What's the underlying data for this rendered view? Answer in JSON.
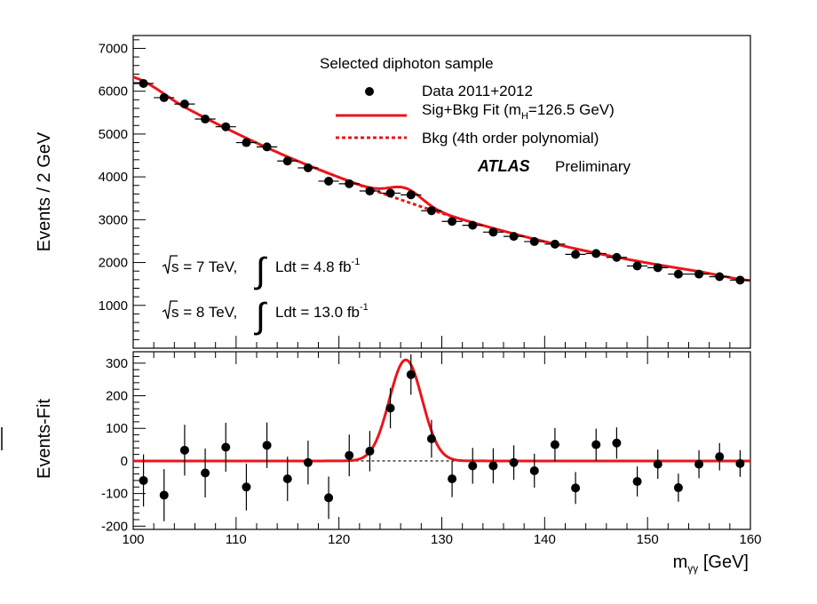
{
  "chart_data": [
    {
      "type": "scatter",
      "panel": "main",
      "ylabel": "Events / 2 GeV",
      "xlim": [
        100,
        160
      ],
      "ylim": [
        0,
        7300
      ],
      "yticks": [
        1000,
        2000,
        3000,
        4000,
        5000,
        6000,
        7000
      ],
      "legend": {
        "header": "Selected diphoton sample",
        "data": "Data 2011+2012",
        "sig_prefix": "Sig+Bkg Fit (m",
        "sig_sub": "H",
        "sig_suffix": "=126.5 GeV)",
        "bkg": "Bkg (4th order polynomial)",
        "placement": "top-right"
      },
      "experiment": "ATLAS",
      "status": "Preliminary",
      "lumi": [
        {
          "sqrt": "s",
          "energy": " = 7 TeV,",
          "int": "Ldt = 4.8 fb",
          "exp": "-1"
        },
        {
          "sqrt": "s",
          "energy": " = 8 TeV,",
          "int": "Ldt = 13.0 fb",
          "exp": "-1"
        }
      ],
      "x": [
        101,
        103,
        105,
        107,
        109,
        111,
        113,
        115,
        117,
        119,
        121,
        123,
        125,
        127,
        129,
        131,
        133,
        135,
        137,
        139,
        141,
        143,
        145,
        147,
        149,
        151,
        153,
        155,
        157,
        159
      ],
      "values": [
        6180,
        5850,
        5700,
        5350,
        5170,
        4800,
        4700,
        4370,
        4210,
        3900,
        3840,
        3670,
        3620,
        3580,
        3210,
        2960,
        2870,
        2710,
        2610,
        2490,
        2430,
        2190,
        2210,
        2120,
        1920,
        1880,
        1730,
        1730,
        1670,
        1590
      ],
      "background_fit": {
        "x": [
          100,
          105,
          110,
          115,
          120,
          125,
          130,
          135,
          140,
          145,
          150,
          155,
          160
        ],
        "y": [
          6330,
          5630,
          5020,
          4470,
          3990,
          3550,
          3150,
          2800,
          2490,
          2220,
          1990,
          1790,
          1580
        ]
      },
      "signal": {
        "mass": 126.5,
        "peak": 310,
        "sigma": 1.6
      },
      "colors": {
        "fit": "#e8161b",
        "data": "#000000"
      }
    },
    {
      "type": "scatter",
      "panel": "residual",
      "ylabel": "Events-Fit",
      "xlabel_main": "m",
      "xlabel_sub": "γγ",
      "xlabel_unit": " [GeV]",
      "xlim": [
        100,
        160
      ],
      "ylim": [
        -210,
        335
      ],
      "yticks": [
        -200,
        -100,
        0,
        100,
        200,
        300
      ],
      "xticks": [
        100,
        110,
        120,
        130,
        140,
        150,
        160
      ],
      "x": [
        101,
        103,
        105,
        107,
        109,
        111,
        113,
        115,
        117,
        119,
        121,
        123,
        125,
        127,
        129,
        131,
        133,
        135,
        137,
        139,
        141,
        143,
        145,
        147,
        149,
        151,
        153,
        155,
        157,
        159
      ],
      "values": [
        -60,
        -105,
        33,
        -37,
        42,
        -80,
        48,
        -55,
        -5,
        -113,
        17,
        30,
        162,
        265,
        68,
        -55,
        -15,
        -15,
        -5,
        -30,
        50,
        -83,
        50,
        55,
        -63,
        -10,
        -82,
        -10,
        13,
        -8
      ],
      "errors": [
        80,
        80,
        78,
        75,
        75,
        72,
        70,
        68,
        67,
        65,
        64,
        62,
        62,
        62,
        58,
        56,
        55,
        54,
        53,
        52,
        51,
        49,
        49,
        48,
        46,
        45,
        43,
        43,
        42,
        41
      ],
      "signal": {
        "mass": 126.5,
        "peak": 310,
        "sigma": 1.6
      },
      "colors": {
        "fit": "#e8161b",
        "data": "#000000"
      }
    }
  ]
}
